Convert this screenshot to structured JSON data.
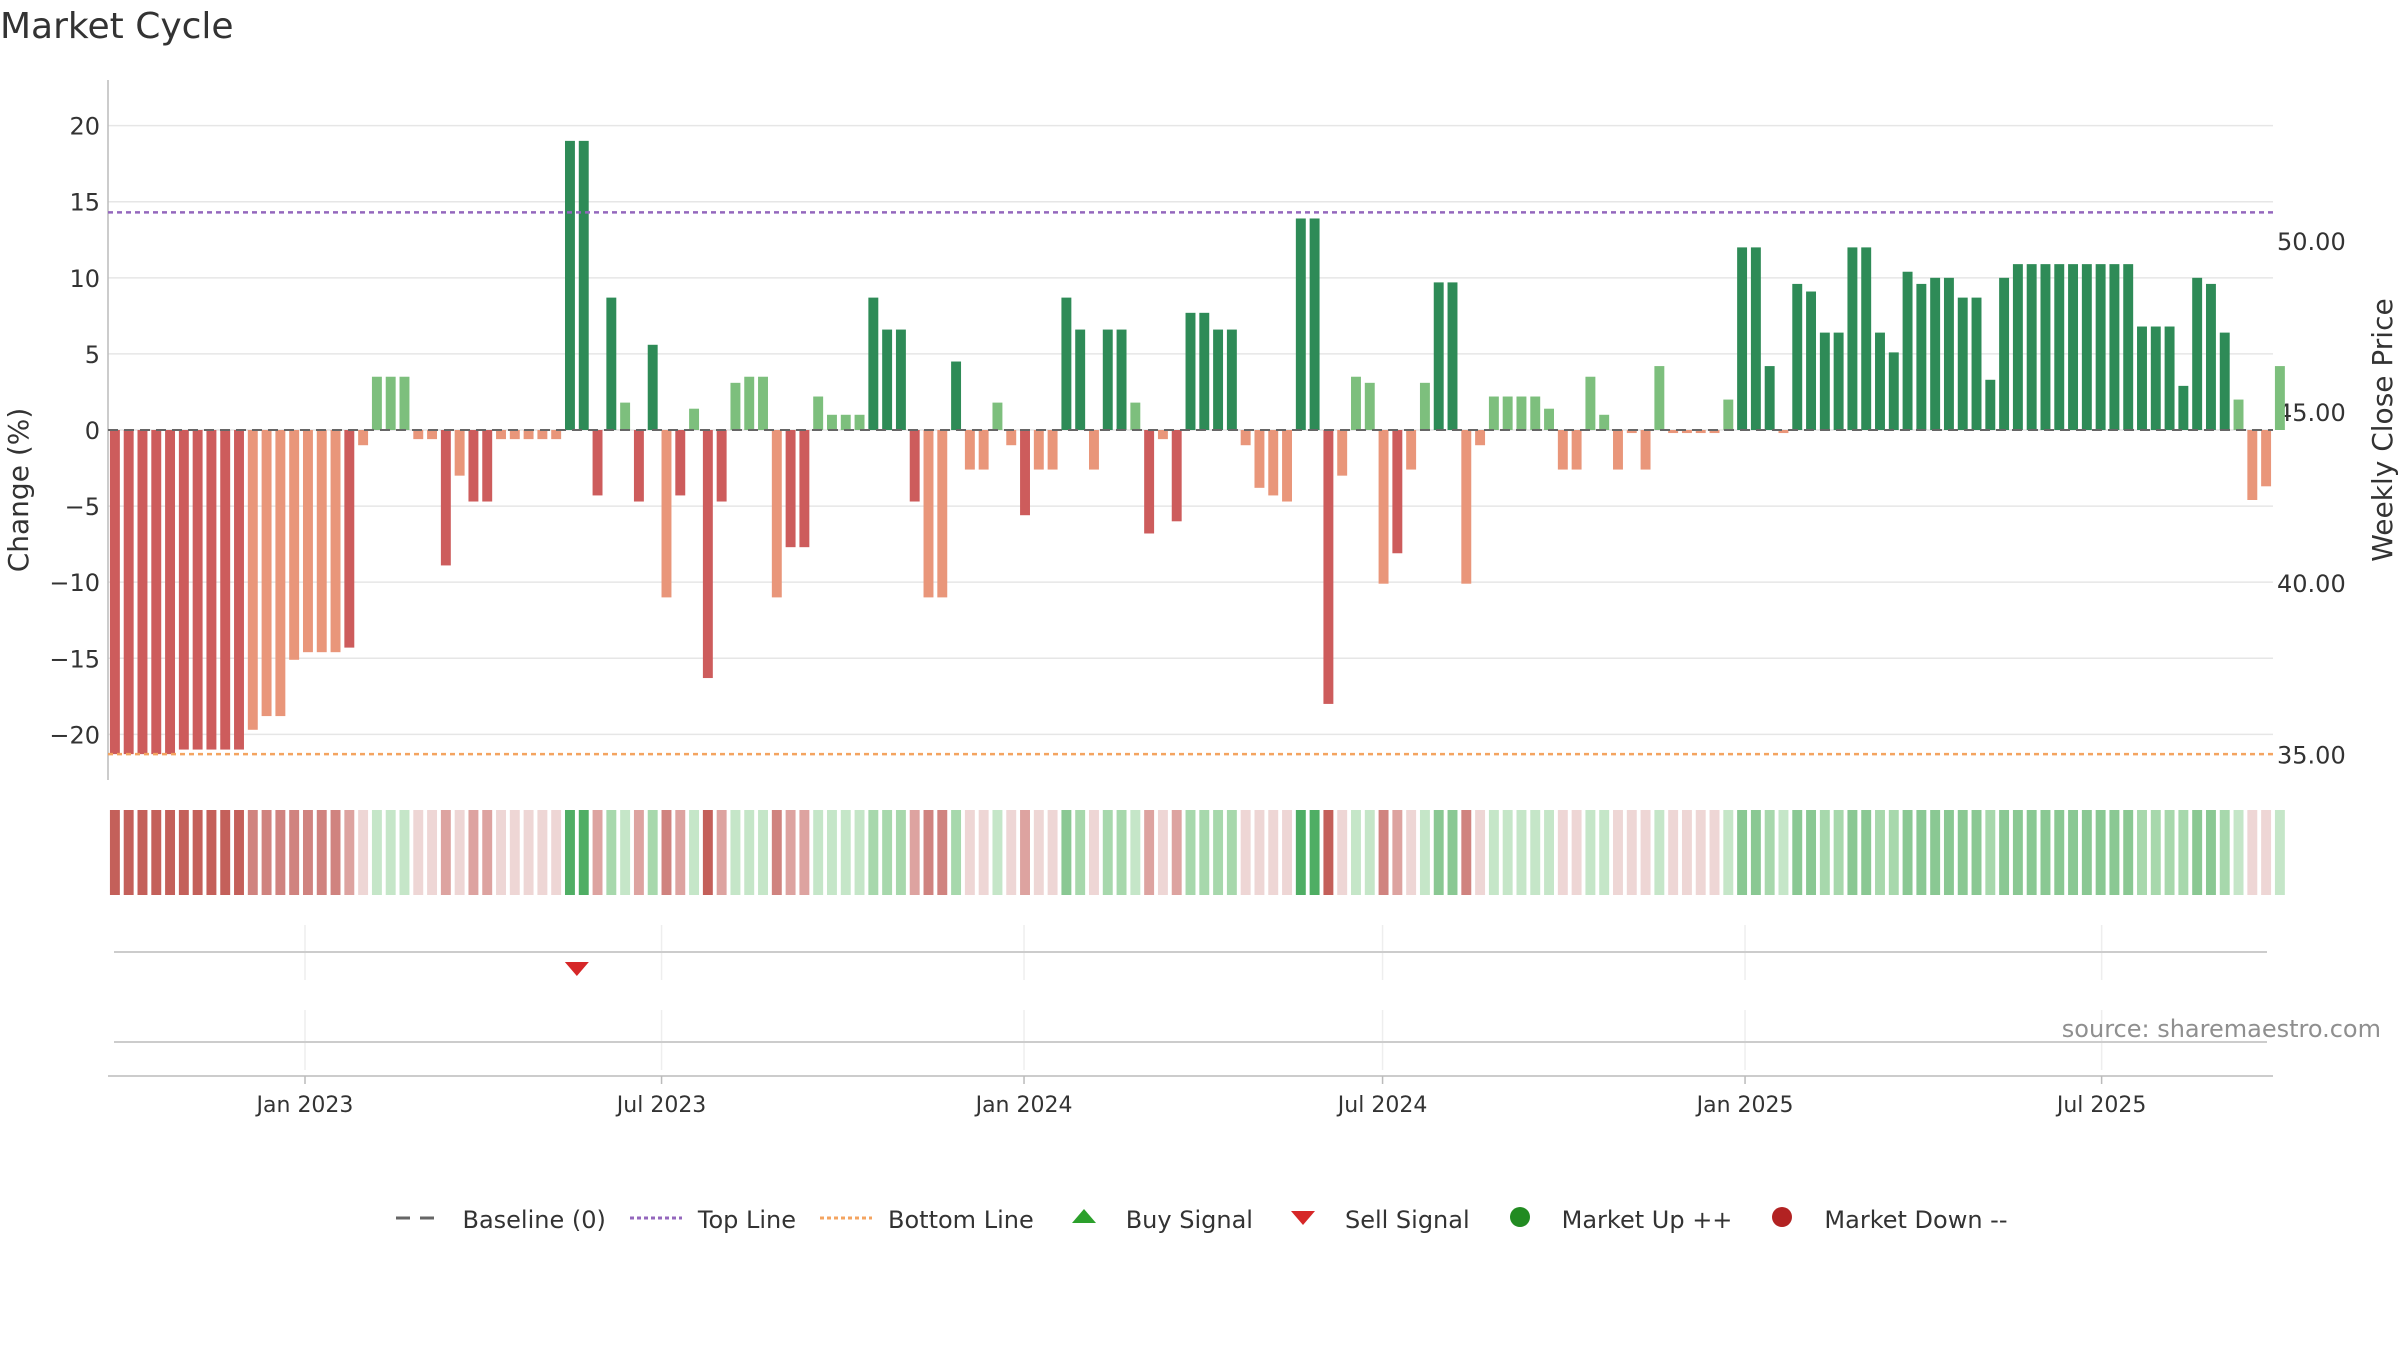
{
  "title": "Market Cycle",
  "source_note": "source: sharemaestro.com",
  "colors": {
    "strong_up": "#2e8b57",
    "mild_up": "#7dbf7d",
    "strong_down": "#cd5c5c",
    "mild_down": "#e9967a",
    "top_line": "#9467bd",
    "bottom_line": "#f4a460",
    "baseline": "#666666",
    "buy_signal": "#2ca02c",
    "sell_signal": "#d62728",
    "market_up": "#228b22",
    "market_down": "#b22222"
  },
  "legend": [
    {
      "label": "Baseline (0)",
      "icon": "dash-line-icon",
      "color": "#666666"
    },
    {
      "label": "Top Line",
      "icon": "dotted-line-icon",
      "color": "#9467bd"
    },
    {
      "label": "Bottom Line",
      "icon": "dotted-line-icon",
      "color": "#f4a460"
    },
    {
      "label": "Buy Signal",
      "icon": "triangle-up-icon",
      "color": "#2ca02c"
    },
    {
      "label": "Sell Signal",
      "icon": "triangle-down-icon",
      "color": "#d62728"
    },
    {
      "label": "Market Up ++",
      "icon": "circle-icon",
      "color": "#228b22"
    },
    {
      "label": "Market Down --",
      "icon": "circle-icon",
      "color": "#b22222"
    }
  ],
  "chart_data": {
    "type": "bar",
    "ylabel": "Change (%)",
    "y2label": "Weekly Close Price",
    "ylim": [
      -23,
      23
    ],
    "yticks": [
      -20,
      -15,
      -10,
      -5,
      0,
      5,
      10,
      15,
      20
    ],
    "y2ticks": [
      "35.00",
      "40.00",
      "45.00",
      "50.00"
    ],
    "y2_values": [
      35,
      40,
      45,
      50
    ],
    "y2lim": [
      34.25,
      54.7
    ],
    "top_line": 14.3,
    "bottom_line": -21.3,
    "x_start": "2022-09-23",
    "x_end": "2025-09-26",
    "x_tick_labels": [
      {
        "label": "Jan 2023",
        "date": "2023-01-01"
      },
      {
        "label": "Jul 2023",
        "date": "2023-07-01"
      },
      {
        "label": "Jan 2024",
        "date": "2024-01-01"
      },
      {
        "label": "Jul 2024",
        "date": "2024-07-01"
      },
      {
        "label": "Jan 2025",
        "date": "2025-01-01"
      },
      {
        "label": "Jul 2025",
        "date": "2025-07-01"
      }
    ],
    "first_week": "2022-09-23",
    "week_interval_days": 7,
    "values": [
      -21.3,
      -21.3,
      -21.3,
      -21.3,
      -21.3,
      -21.0,
      -21.0,
      -21.0,
      -21.0,
      -21.0,
      -19.7,
      -18.8,
      -18.8,
      -15.1,
      -14.6,
      -14.6,
      -14.6,
      -14.3,
      -1.0,
      3.5,
      3.5,
      3.5,
      -0.6,
      -0.6,
      -8.9,
      -3.0,
      -4.7,
      -4.7,
      -0.6,
      -0.6,
      -0.6,
      -0.6,
      -0.6,
      19.0,
      19.0,
      -4.3,
      8.7,
      1.8,
      -4.7,
      5.6,
      -11.0,
      -4.3,
      1.4,
      -16.3,
      -4.7,
      3.1,
      3.5,
      3.5,
      -11.0,
      -7.7,
      -7.7,
      2.2,
      1.0,
      1.0,
      1.0,
      8.7,
      6.6,
      6.6,
      -4.7,
      -11.0,
      -11.0,
      4.5,
      -2.6,
      -2.6,
      1.8,
      -1.0,
      -5.6,
      -2.6,
      -2.6,
      8.7,
      6.6,
      -2.6,
      6.6,
      6.6,
      1.8,
      -6.8,
      -0.6,
      -6.0,
      7.7,
      7.7,
      6.6,
      6.6,
      -1.0,
      -3.8,
      -4.3,
      -4.7,
      13.9,
      13.9,
      -18.0,
      -3.0,
      3.5,
      3.1,
      -10.1,
      -8.1,
      -2.6,
      3.1,
      9.7,
      9.7,
      -10.1,
      -1.0,
      2.2,
      2.2,
      2.2,
      2.2,
      1.4,
      -2.6,
      -2.6,
      3.5,
      1.0,
      -2.6,
      -0.2,
      -2.6,
      4.2,
      -0.2,
      -0.2,
      -0.2,
      -0.2,
      2.0,
      12.0,
      12.0,
      4.2,
      -0.2,
      9.6,
      9.1,
      6.4,
      6.4,
      12.0,
      12.0,
      6.4,
      5.1,
      10.4,
      9.6,
      10.0,
      10.0,
      8.7,
      8.7,
      3.3,
      10.0,
      10.9,
      10.9,
      10.9,
      10.9,
      10.9,
      10.9,
      10.9,
      10.9,
      10.9,
      6.8,
      6.8,
      6.8,
      2.9,
      10.0,
      9.6,
      6.4,
      2.0,
      -4.6,
      -3.7,
      4.2
    ],
    "heat_levels": [
      -4,
      -4,
      -4,
      -4,
      -4,
      -4,
      -4,
      -4,
      -4,
      -4,
      -3,
      -3,
      -3,
      -3,
      -3,
      -3,
      -3,
      -2,
      -1,
      1,
      1,
      1,
      -1,
      -1,
      -2,
      -1,
      -2,
      -2,
      -1,
      -1,
      -1,
      -1,
      -1,
      4,
      4,
      -2,
      2,
      1,
      -2,
      2,
      -3,
      -2,
      1,
      -4,
      -2,
      1,
      1,
      1,
      -3,
      -2,
      -2,
      1,
      1,
      1,
      1,
      2,
      2,
      2,
      -2,
      -3,
      -3,
      2,
      -1,
      -1,
      1,
      -1,
      -2,
      -1,
      -1,
      3,
      2,
      -1,
      2,
      2,
      1,
      -2,
      -1,
      -2,
      2,
      2,
      2,
      2,
      -1,
      -1,
      -1,
      -1,
      4,
      4,
      -4,
      -1,
      1,
      1,
      -3,
      -2,
      -1,
      1,
      3,
      3,
      -3,
      -1,
      1,
      1,
      1,
      1,
      1,
      -1,
      -1,
      1,
      1,
      -1,
      -1,
      -1,
      1,
      -1,
      -1,
      -1,
      -1,
      1,
      3,
      3,
      2,
      1,
      3,
      3,
      2,
      2,
      3,
      3,
      2,
      2,
      3,
      3,
      3,
      3,
      3,
      3,
      2,
      3,
      3,
      3,
      3,
      3,
      3,
      3,
      3,
      3,
      3,
      2,
      2,
      2,
      2,
      3,
      3,
      2,
      1,
      -1,
      -1,
      1
    ],
    "sell_signals": [
      "2023-05-19"
    ],
    "buy_signals": []
  }
}
